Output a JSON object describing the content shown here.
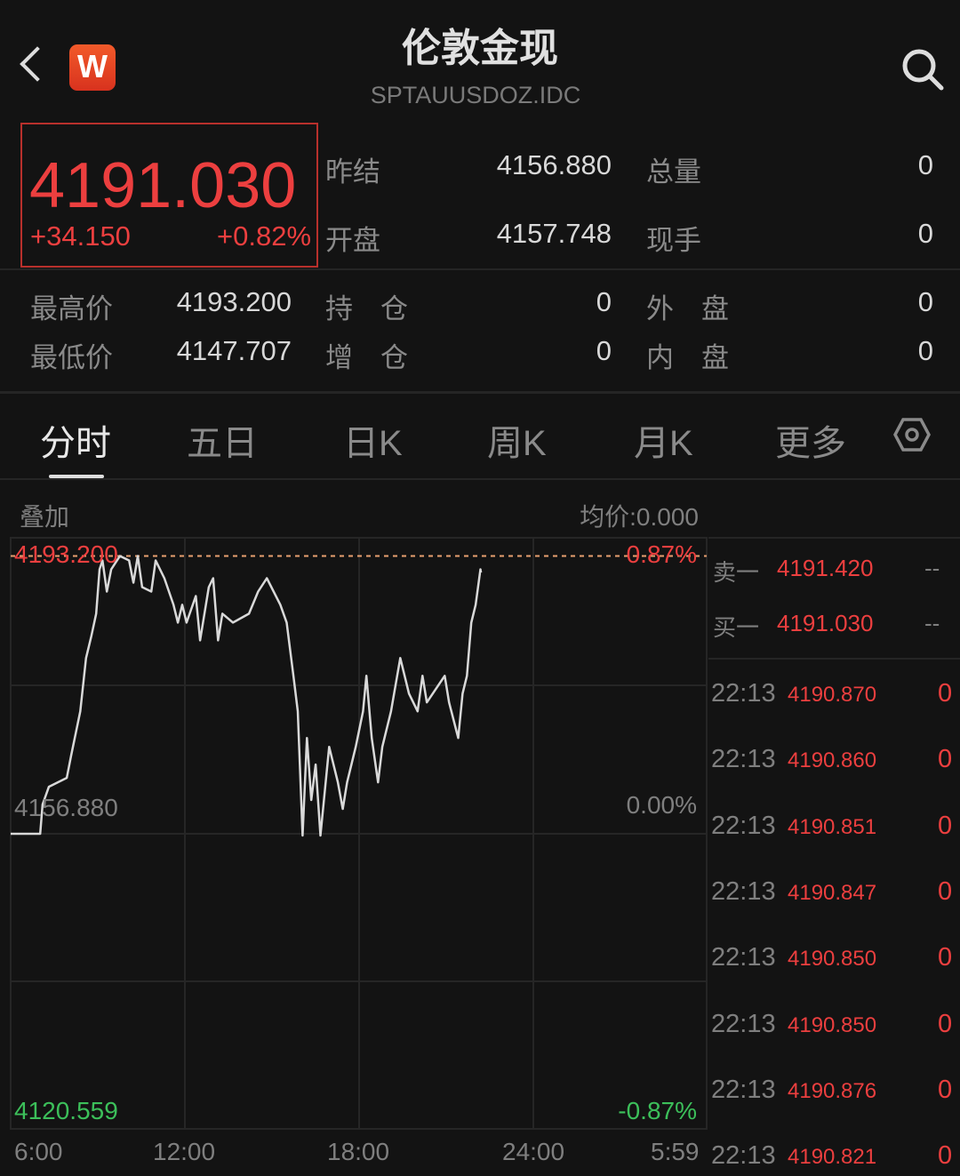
{
  "header": {
    "title": "伦敦金现",
    "symbol": "SPTAUUSDOZ.IDC",
    "logo_text": "W",
    "back_icon": "chevron-left-icon",
    "search_icon": "search-icon"
  },
  "quote": {
    "price": "4191.030",
    "change": "+34.150",
    "change_pct": "+0.82%",
    "stats": [
      {
        "label": "昨结",
        "value": "4156.880"
      },
      {
        "label": "总量",
        "value": "0"
      },
      {
        "label": "开盘",
        "value": "4157.748"
      },
      {
        "label": "现手",
        "value": "0"
      },
      {
        "label": "最高价",
        "value": "4193.200"
      },
      {
        "label": "持　仓",
        "value": "0"
      },
      {
        "label": "外　盘",
        "value": "0"
      },
      {
        "label": "最低价",
        "value": "4147.707"
      },
      {
        "label": "增　仓",
        "value": "0"
      },
      {
        "label": "内　盘",
        "value": "0"
      }
    ]
  },
  "tabs": [
    {
      "label": "分时",
      "active": true
    },
    {
      "label": "五日"
    },
    {
      "label": "日K"
    },
    {
      "label": "周K"
    },
    {
      "label": "月K"
    },
    {
      "label": "更多"
    }
  ],
  "settings_icon": "hexagon-settings-icon",
  "chart_toolbar": {
    "overlay": "叠加",
    "avg_price": "均价:0.000"
  },
  "colors": {
    "up": "#ec3f3f",
    "down": "#3cbf5a",
    "line": "#d9d9d9",
    "background": "#131313"
  },
  "chart_data": {
    "type": "line",
    "y_labels_left": {
      "top": "4193.200",
      "mid": "4156.880",
      "bottom": "4120.559"
    },
    "y_labels_right": {
      "top": "0.87%",
      "mid": "0.00%",
      "bottom": "-0.87%"
    },
    "x_ticks": [
      "6:00",
      "12:00",
      "18:00",
      "24:00",
      "5:59"
    ],
    "ylim": [
      4120.559,
      4193.2
    ],
    "reference_price": 4156.88,
    "high_line": 4193.2,
    "grid": true,
    "series": [
      {
        "x": [
          "6:00",
          "7:01",
          "7:06",
          "7:19",
          "7:56",
          "8:05",
          "8:24",
          "8:36",
          "8:47",
          "8:57",
          "9:04",
          "9:10",
          "9:19",
          "9:28",
          "9:46",
          "10:05",
          "10:14",
          "10:23",
          "10:32",
          "10:51",
          "11:00",
          "11:18",
          "11:37",
          "11:46",
          "11:55",
          "12:04",
          "12:23",
          "12:32",
          "12:50",
          "12:59",
          "13:09",
          "13:18",
          "13:40",
          "14:13",
          "14:32",
          "14:50",
          "15:18",
          "15:31",
          "15:45",
          "15:54",
          "16:04",
          "16:13",
          "16:22",
          "16:31",
          "16:41",
          "16:50",
          "16:59",
          "17:17",
          "17:27",
          "17:36",
          "17:54",
          "18:09",
          "18:16",
          "18:27",
          "18:40",
          "18:49",
          "19:07",
          "19:26",
          "19:44",
          "20:02",
          "20:12",
          "20:21",
          "20:58",
          "21:07",
          "21:26",
          "21:35",
          "21:44",
          "21:53",
          "22:02",
          "22:12",
          "22:13"
        ],
        "values": [
          4156.88,
          4156.88,
          4160.71,
          4163.03,
          4164.19,
          4167.09,
          4172.89,
          4179.85,
          4182.75,
          4185.65,
          4191.45,
          4192.61,
          4188.55,
          4191.45,
          4193.2,
          4192.61,
          4189.71,
          4193.2,
          4189.13,
          4188.55,
          4192.61,
          4190.29,
          4186.81,
          4184.49,
          4186.81,
          4184.49,
          4187.97,
          4182.17,
          4189.13,
          4190.29,
          4182.17,
          4185.65,
          4184.49,
          4185.65,
          4188.55,
          4190.29,
          4186.81,
          4184.49,
          4177.53,
          4172.89,
          4156.65,
          4169.41,
          4161.29,
          4165.93,
          4156.65,
          4162.45,
          4168.25,
          4163.61,
          4160.13,
          4163.61,
          4168.25,
          4172.89,
          4177.53,
          4169.41,
          4163.61,
          4168.25,
          4172.89,
          4179.85,
          4175.21,
          4172.89,
          4177.53,
          4174.05,
          4177.53,
          4174.05,
          4169.41,
          4175.21,
          4177.53,
          4184.49,
          4186.81,
          4191.45,
          4191.03
        ]
      }
    ]
  },
  "order_book": [
    {
      "label": "卖一",
      "price": "4191.420",
      "vol": "--"
    },
    {
      "label": "买一",
      "price": "4191.030",
      "vol": "--"
    }
  ],
  "ticks": [
    {
      "time": "22:13",
      "price": "4190.870",
      "vol": "0"
    },
    {
      "time": "22:13",
      "price": "4190.860",
      "vol": "0"
    },
    {
      "time": "22:13",
      "price": "4190.851",
      "vol": "0"
    },
    {
      "time": "22:13",
      "price": "4190.847",
      "vol": "0"
    },
    {
      "time": "22:13",
      "price": "4190.850",
      "vol": "0"
    },
    {
      "time": "22:13",
      "price": "4190.850",
      "vol": "0"
    },
    {
      "time": "22:13",
      "price": "4190.876",
      "vol": "0"
    },
    {
      "time": "22:13",
      "price": "4190.821",
      "vol": "0"
    }
  ]
}
